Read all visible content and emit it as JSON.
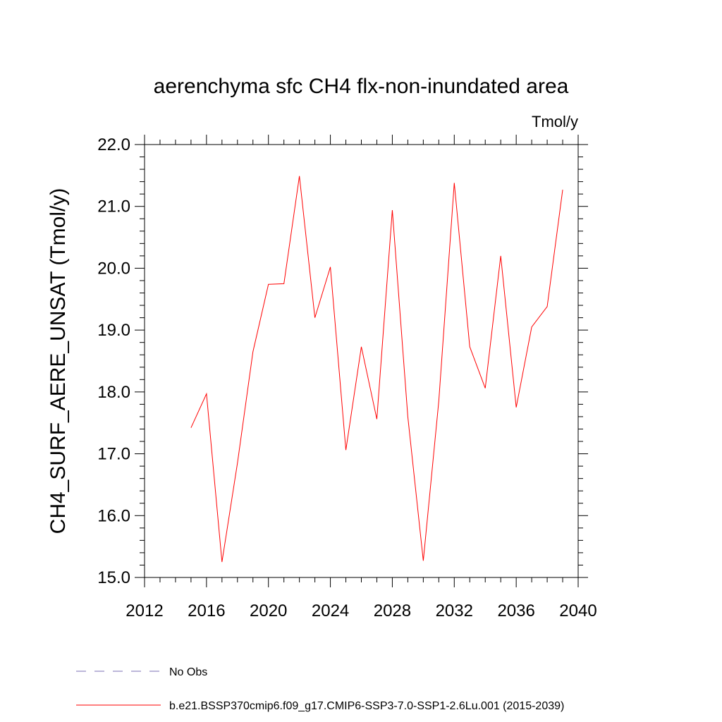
{
  "chart_data": {
    "type": "line",
    "title": "aerenchyma sfc CH4 flx-non-inundated area",
    "units_label": "Tmol/y",
    "xlabel": "",
    "ylabel": "CH4_SURF_AERE_UNSAT  (Tmol/y)",
    "xlim": [
      2012,
      2040
    ],
    "ylim": [
      15.0,
      22.0
    ],
    "x_ticks": [
      2012,
      2016,
      2020,
      2024,
      2028,
      2032,
      2036,
      2040
    ],
    "x_tick_labels": [
      "2012",
      "2016",
      "2020",
      "2024",
      "2028",
      "2032",
      "2036",
      "2040"
    ],
    "y_ticks": [
      15.0,
      16.0,
      17.0,
      18.0,
      19.0,
      20.0,
      21.0,
      22.0
    ],
    "y_tick_labels": [
      "15.0",
      "16.0",
      "17.0",
      "18.0",
      "19.0",
      "20.0",
      "21.0",
      "22.0"
    ],
    "grid": false,
    "legend_position": "bottom",
    "series": [
      {
        "name": "No Obs",
        "color": "#7b6fb5",
        "style": "dashed",
        "x": [],
        "y": []
      },
      {
        "name": "b.e21.BSSP370cmip6.f09_g17.CMIP6-SSP3-7.0-SSP1-2.6Lu.001 (2015-2039)",
        "color": "#ff0000",
        "style": "solid",
        "x": [
          2015,
          2016,
          2017,
          2018,
          2019,
          2020,
          2021,
          2022,
          2023,
          2024,
          2025,
          2026,
          2027,
          2028,
          2029,
          2030,
          2031,
          2032,
          2033,
          2034,
          2035,
          2036,
          2037,
          2038,
          2039
        ],
        "y": [
          17.42,
          17.97,
          15.25,
          16.85,
          18.65,
          19.74,
          19.75,
          21.49,
          19.2,
          20.02,
          17.06,
          18.73,
          17.56,
          20.94,
          17.6,
          15.27,
          17.85,
          21.38,
          18.73,
          18.06,
          20.2,
          17.75,
          19.05,
          19.38,
          21.27
        ]
      }
    ]
  }
}
